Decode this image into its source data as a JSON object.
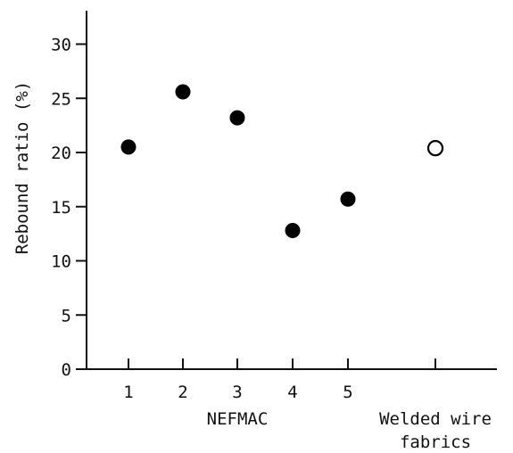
{
  "chart_data": {
    "type": "scatter",
    "ylabel": "Rebound ratio (%)",
    "xlabel": "",
    "ylim": [
      0,
      32
    ],
    "yticks": [
      0,
      5,
      10,
      15,
      20,
      25,
      30
    ],
    "xticks": [
      "1",
      "2",
      "3",
      "4",
      "5",
      ""
    ],
    "groups": [
      {
        "label": "NEFMAC",
        "members": [
          "1",
          "2",
          "3",
          "4",
          "5"
        ]
      },
      {
        "label_lines": [
          "Welded wire",
          "fabrics"
        ],
        "members": [
          ""
        ]
      }
    ],
    "series": [
      {
        "marker": "filled-circle",
        "x": [
          "1",
          "2",
          "3",
          "4",
          "5"
        ],
        "values": [
          20.5,
          25.6,
          23.2,
          12.8,
          15.7
        ]
      },
      {
        "marker": "open-circle",
        "x": [
          ""
        ],
        "values": [
          20.4
        ]
      }
    ],
    "grid": false,
    "legend": "none"
  }
}
